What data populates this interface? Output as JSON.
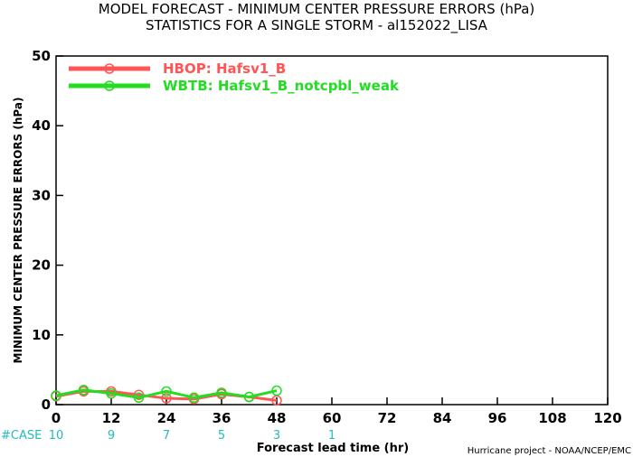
{
  "chart_data": {
    "type": "line",
    "title": "MODEL FORECAST - MINIMUM CENTER PRESSURE ERRORS (hPa)",
    "subtitle": "STATISTICS FOR A SINGLE STORM - al152022_LISA",
    "xlabel": "Forecast lead time (hr)",
    "ylabel": "MINIMUM CENTER PRESSURE ERRORS (hPa)",
    "xlim": [
      0,
      120
    ],
    "ylim": [
      0,
      50
    ],
    "x_ticks": [
      "0",
      "12",
      "24",
      "36",
      "48",
      "60",
      "72",
      "84",
      "96",
      "108",
      "120"
    ],
    "y_ticks": [
      "0",
      "10",
      "20",
      "30",
      "40",
      "50"
    ],
    "grid": false,
    "legend_position": "top-left",
    "series": [
      {
        "name": "HBOP: Hafsv1_B",
        "color": "#ff5555",
        "x": [
          0,
          6,
          12,
          18,
          24,
          30,
          36,
          42,
          48
        ],
        "y": [
          1.2,
          1.9,
          1.9,
          1.4,
          0.9,
          0.8,
          1.5,
          1.1,
          0.6
        ]
      },
      {
        "name": "WBTB: Hafsv1_B_notcpbl_weak",
        "color": "#22dd22",
        "x": [
          0,
          6,
          12,
          18,
          24,
          30,
          36,
          42,
          48
        ],
        "y": [
          1.3,
          2.1,
          1.6,
          1.0,
          1.9,
          1.0,
          1.7,
          1.1,
          2.0
        ]
      }
    ],
    "case_label": "#CASE",
    "case_counts": [
      {
        "x": 0,
        "label": "10"
      },
      {
        "x": 12,
        "label": "9"
      },
      {
        "x": 24,
        "label": "7"
      },
      {
        "x": 36,
        "label": "5"
      },
      {
        "x": 48,
        "label": "3"
      },
      {
        "x": 60,
        "label": "1"
      }
    ],
    "case_color": "#22bbbb",
    "credit": "Hurricane project - NOAA/NCEP/EMC"
  }
}
